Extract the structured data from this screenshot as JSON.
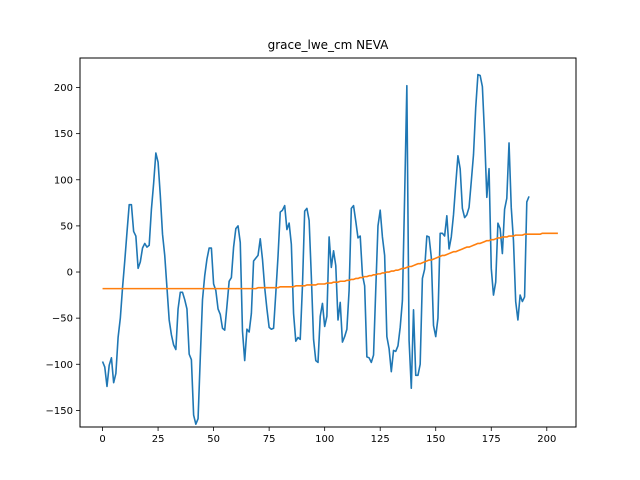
{
  "chart_data": {
    "type": "line",
    "title": "grace_lwe_cm NEVA",
    "xlabel": "",
    "ylabel": "",
    "xlim": [
      -10.15,
      213.15
    ],
    "ylim": [
      -168.0,
      232.0
    ],
    "x_ticks": [
      0,
      25,
      50,
      75,
      100,
      125,
      150,
      175,
      200
    ],
    "y_ticks": [
      -150,
      -100,
      -50,
      0,
      50,
      100,
      150,
      200
    ],
    "grid": false,
    "series": [
      {
        "color": "#1f77b4",
        "values": [
          -97,
          -103,
          -124,
          -101,
          -93,
          -120,
          -110,
          -71,
          -50,
          -17,
          12,
          43,
          73,
          73,
          44,
          39,
          4,
          11,
          26,
          31,
          27,
          29,
          68,
          96,
          129,
          119,
          83,
          41,
          18,
          -17,
          -52,
          -68,
          -79,
          -84,
          -40,
          -22,
          -22,
          -30,
          -40,
          -89,
          -95,
          -155,
          -165,
          -159,
          -93,
          -30,
          -4,
          14,
          26,
          26,
          -13,
          -20,
          -40,
          -46,
          -61,
          -63,
          -37,
          -10,
          -6,
          27,
          47,
          50,
          32,
          -64,
          -96,
          -62,
          -65,
          -45,
          12,
          15,
          18,
          36,
          14,
          -17,
          -40,
          -60,
          -62,
          -61,
          -23,
          17,
          65,
          67,
          72,
          46,
          53,
          30,
          -45,
          -75,
          -71,
          -73,
          -15,
          66,
          69,
          56,
          -5,
          -73,
          -96,
          -98,
          -48,
          -34,
          -59,
          -48,
          38,
          5,
          23,
          7,
          -52,
          -33,
          -76,
          -70,
          -62,
          -20,
          69,
          72,
          55,
          37,
          39,
          -3,
          -15,
          -92,
          -93,
          -98,
          -90,
          -19,
          50,
          67,
          38,
          18,
          -70,
          -83,
          -108,
          -85,
          -86,
          -80,
          -60,
          -31,
          82,
          202,
          -74,
          -126,
          -41,
          -112,
          -112,
          -100,
          -7,
          3,
          39,
          38,
          16,
          -58,
          -70,
          -50,
          42,
          42,
          39,
          61,
          25,
          38,
          62,
          95,
          126,
          112,
          69,
          59,
          62,
          70,
          98,
          127,
          178,
          214,
          213,
          201,
          148,
          81,
          112,
          4,
          -25,
          -11,
          53,
          47,
          20,
          68,
          80,
          140,
          70,
          34,
          -32,
          -52,
          -25,
          -32,
          -27,
          76,
          82
        ]
      },
      {
        "color": "#ff7f0e",
        "values": [
          -18,
          -18,
          -18,
          -18,
          -18,
          -18,
          -18,
          -18,
          -18,
          -18,
          -18,
          -18,
          -18,
          -18,
          -18,
          -18,
          -18,
          -18,
          -18,
          -18,
          -18,
          -18,
          -18,
          -18,
          -18,
          -18,
          -18,
          -18,
          -18,
          -18,
          -18,
          -18,
          -18,
          -18,
          -18,
          -18,
          -18,
          -18,
          -18,
          -18,
          -18,
          -18,
          -18,
          -18,
          -18,
          -18,
          -18,
          -18,
          -18,
          -18,
          -18,
          -18,
          -18,
          -18,
          -18,
          -18,
          -18,
          -18,
          -18,
          -18,
          -18,
          -18,
          -18,
          -18,
          -18,
          -18,
          -18,
          -18,
          -18,
          -18,
          -17,
          -17,
          -17,
          -17,
          -17,
          -17,
          -17,
          -17,
          -17,
          -17,
          -16,
          -16,
          -16,
          -16,
          -16,
          -16,
          -16,
          -15,
          -15,
          -15,
          -15,
          -15,
          -14,
          -14,
          -14,
          -14,
          -14,
          -13,
          -13,
          -13,
          -13,
          -12,
          -12,
          -12,
          -11,
          -11,
          -11,
          -10,
          -10,
          -10,
          -9,
          -9,
          -8,
          -8,
          -7,
          -7,
          -6,
          -6,
          -5,
          -5,
          -4,
          -4,
          -3,
          -3,
          -2,
          -2,
          -1,
          -1,
          0,
          0,
          1,
          1,
          2,
          2,
          3,
          4,
          4,
          5,
          6,
          6,
          7,
          8,
          9,
          9,
          10,
          11,
          12,
          13,
          13,
          14,
          15,
          16,
          17,
          18,
          18,
          19,
          20,
          21,
          22,
          22,
          23,
          24,
          25,
          26,
          27,
          27,
          28,
          29,
          30,
          31,
          31,
          32,
          33,
          34,
          34,
          35,
          35,
          36,
          37,
          37,
          38,
          38,
          38,
          39,
          39,
          39,
          40,
          40,
          40,
          40,
          41,
          41,
          41,
          41,
          41,
          41,
          41,
          41,
          42,
          42,
          42,
          42,
          42,
          42,
          42,
          42
        ]
      }
    ]
  }
}
